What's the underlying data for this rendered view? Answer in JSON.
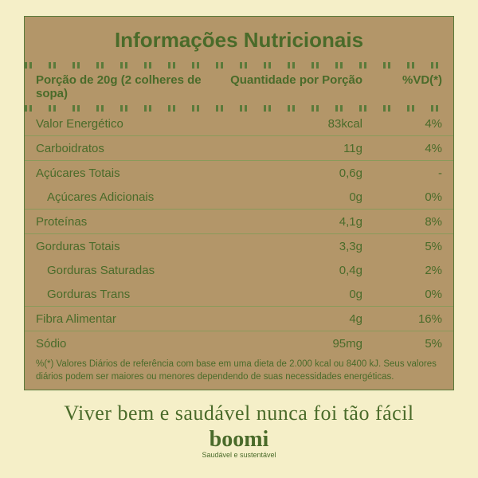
{
  "panel": {
    "background": "#b39669",
    "border": "#5a7a3a",
    "text_color": "#4a6b2a"
  },
  "page_background": "#f5efc8",
  "title": "Informações Nutricionais",
  "header": {
    "c1": "Porção de 20g (2 colheres de sopa)",
    "c2": "Quantidade por Porção",
    "c3": "%VD(*)"
  },
  "rows": [
    {
      "label": "Valor Energético",
      "amount": "83kcal",
      "vd": "4%",
      "indent": false
    },
    {
      "label": "Carboidratos",
      "amount": "11g",
      "vd": "4%",
      "indent": false
    },
    {
      "label": "Açúcares Totais",
      "amount": "0,6g",
      "vd": "-",
      "indent": false
    },
    {
      "label": "Açúcares Adicionais",
      "amount": "0g",
      "vd": "0%",
      "indent": true
    },
    {
      "label": "Proteínas",
      "amount": "4,1g",
      "vd": "8%",
      "indent": false
    },
    {
      "label": "Gorduras Totais",
      "amount": "3,3g",
      "vd": "5%",
      "indent": false
    },
    {
      "label": "Gorduras Saturadas",
      "amount": "0,4g",
      "vd": "2%",
      "indent": true
    },
    {
      "label": "Gorduras Trans",
      "amount": "0g",
      "vd": "0%",
      "indent": true
    },
    {
      "label": "Fibra Alimentar",
      "amount": "4g",
      "vd": "16%",
      "indent": false
    },
    {
      "label": "Sódio",
      "amount": "95mg",
      "vd": "5%",
      "indent": false
    }
  ],
  "footnote": "%(*) Valores Diários de referência com base em uma dieta de 2.000 kcal ou 8400 kJ. Seus valores diários podem ser maiores ou menores dependendo de suas necessidades energéticas.",
  "tagline": "Viver bem e saudável nunca foi tão fácil",
  "brand": "boomi",
  "brandsub": "Saudável e sustentável"
}
